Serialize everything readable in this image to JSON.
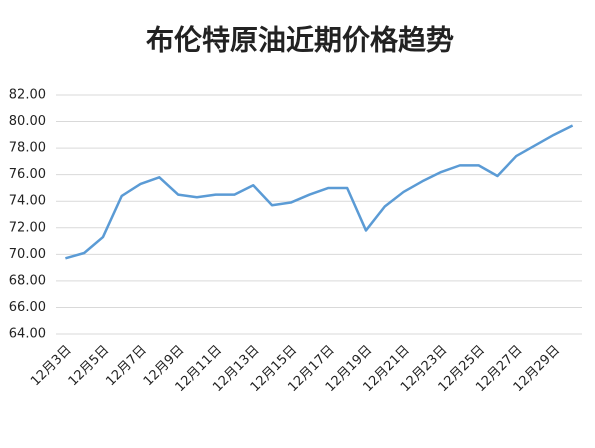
{
  "chart_data": {
    "type": "line",
    "title": "布伦特原油近期价格趋势",
    "categories": [
      "12月3日",
      null,
      "12月5日",
      null,
      "12月7日",
      null,
      "12月9日",
      null,
      "12月11日",
      null,
      "12月13日",
      null,
      "12月15日",
      null,
      "12月17日",
      null,
      "12月19日",
      null,
      "12月21日",
      null,
      "12月23日",
      null,
      "12月25日",
      null,
      "12月27日",
      null,
      "12月29日",
      null
    ],
    "series": [
      {
        "color": "#5b9bd5",
        "values": [
          69.7,
          70.1,
          71.3,
          74.4,
          75.3,
          75.8,
          74.5,
          74.3,
          74.5,
          74.5,
          75.2,
          73.7,
          73.9,
          74.5,
          75.0,
          75.0,
          71.8,
          73.6,
          74.7,
          75.5,
          76.2,
          76.7,
          76.7,
          75.9,
          77.4,
          78.2,
          79.0,
          79.7
        ]
      }
    ],
    "ylim": [
      64,
      82
    ],
    "yticks": [
      {
        "value": 64,
        "label": "64.00"
      },
      {
        "value": 66,
        "label": "66.00"
      },
      {
        "value": 68,
        "label": "68.00"
      },
      {
        "value": 70,
        "label": "70.00"
      },
      {
        "value": 72,
        "label": "72.00"
      },
      {
        "value": 74,
        "label": "74.00"
      },
      {
        "value": 76,
        "label": "76.00"
      },
      {
        "value": 78,
        "label": "78.00"
      },
      {
        "value": 80,
        "label": "80.00"
      },
      {
        "value": 82,
        "label": "82.00"
      }
    ],
    "grid": true
  }
}
